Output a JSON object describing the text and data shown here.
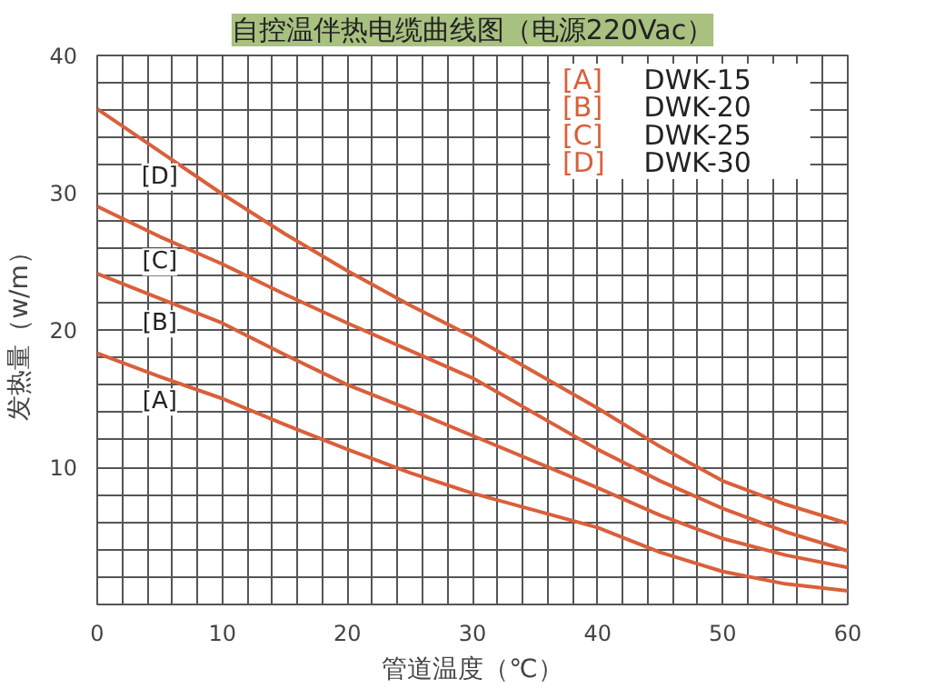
{
  "chart_data": {
    "type": "line",
    "title": "自控温伴热电缆曲线图（电源220Vac）",
    "xlabel": "管道温度（℃）",
    "ylabel": "发热量（w/m）",
    "x": [
      0,
      5,
      10,
      15,
      20,
      25,
      30,
      40,
      45,
      50,
      55,
      60
    ],
    "series": [
      {
        "name": "[A] DWK-15",
        "color": "#d9603b",
        "values": [
          18.3,
          16.6,
          15,
          13.1,
          11.3,
          9.6,
          8.1,
          5.6,
          3.8,
          2.4,
          1.5,
          1
        ]
      },
      {
        "name": "[B] DWK-20",
        "color": "#d9603b",
        "values": [
          24.1,
          22.3,
          20.5,
          18.2,
          16,
          14.2,
          12.3,
          8.5,
          6.5,
          4.8,
          3.6,
          2.7
        ]
      },
      {
        "name": "[C] DWK-25",
        "color": "#d9603b",
        "values": [
          29,
          26.8,
          24.8,
          22.6,
          20.5,
          18.5,
          16.5,
          11.3,
          9,
          7,
          5.3,
          3.9
        ]
      },
      {
        "name": "[D] DWK-30",
        "color": "#d9603b",
        "values": [
          36.1,
          33,
          29.9,
          27,
          24.3,
          21.8,
          19.5,
          14.3,
          11.5,
          9,
          7.3,
          5.9
        ]
      }
    ],
    "annotations": [
      "[A]",
      "[B]",
      "[C]",
      "[D]"
    ],
    "xlim": [
      0,
      60
    ],
    "ylim": [
      0,
      40
    ],
    "xticks": [
      0,
      {
        "value": 2,
        "label": null
      },
      {
        "value": 4,
        "label": null
      },
      {
        "value": 6,
        "label": null
      },
      {
        "value": 8,
        "label": null
      },
      10,
      {
        "value": 12,
        "label": null
      },
      {
        "value": 14,
        "label": null
      },
      {
        "value": 16,
        "label": null
      },
      {
        "value": 18,
        "label": null
      },
      20,
      {
        "value": 22,
        "label": null
      },
      {
        "value": 24,
        "label": null
      },
      {
        "value": 26,
        "label": null
      },
      {
        "value": 28,
        "label": null
      },
      30,
      {
        "value": 32,
        "label": null
      },
      {
        "value": 34,
        "label": null
      },
      {
        "value": 36,
        "label": null
      },
      {
        "value": 38,
        "label": null
      },
      40,
      {
        "value": 42,
        "label": null
      },
      {
        "value": 44,
        "label": null
      },
      {
        "value": 46,
        "label": null
      },
      {
        "value": 48,
        "label": null
      },
      50,
      {
        "value": 52,
        "label": null
      },
      {
        "value": 54,
        "label": null
      },
      {
        "value": 56,
        "label": null
      },
      {
        "value": 58,
        "label": null
      },
      60
    ],
    "yticks": [
      {
        "value": 0,
        "label": null
      },
      {
        "value": 2,
        "label": null
      },
      {
        "value": 4,
        "label": null
      },
      {
        "value": 6,
        "label": null
      },
      {
        "value": 8,
        "label": null
      },
      10,
      {
        "value": 12,
        "label": null
      },
      {
        "value": 14,
        "label": null
      },
      {
        "value": 16,
        "label": null
      },
      {
        "value": 18,
        "label": null
      },
      20,
      {
        "value": 22,
        "label": null
      },
      {
        "value": 24,
        "label": null
      },
      {
        "value": 26,
        "label": null
      },
      {
        "value": 28,
        "label": null
      },
      30,
      {
        "value": 32,
        "label": null
      },
      {
        "value": 34,
        "label": null
      },
      {
        "value": 36,
        "label": null
      },
      {
        "value": 38,
        "label": null
      },
      40
    ],
    "grid": true,
    "marker": "none",
    "line_style": "solid"
  }
}
